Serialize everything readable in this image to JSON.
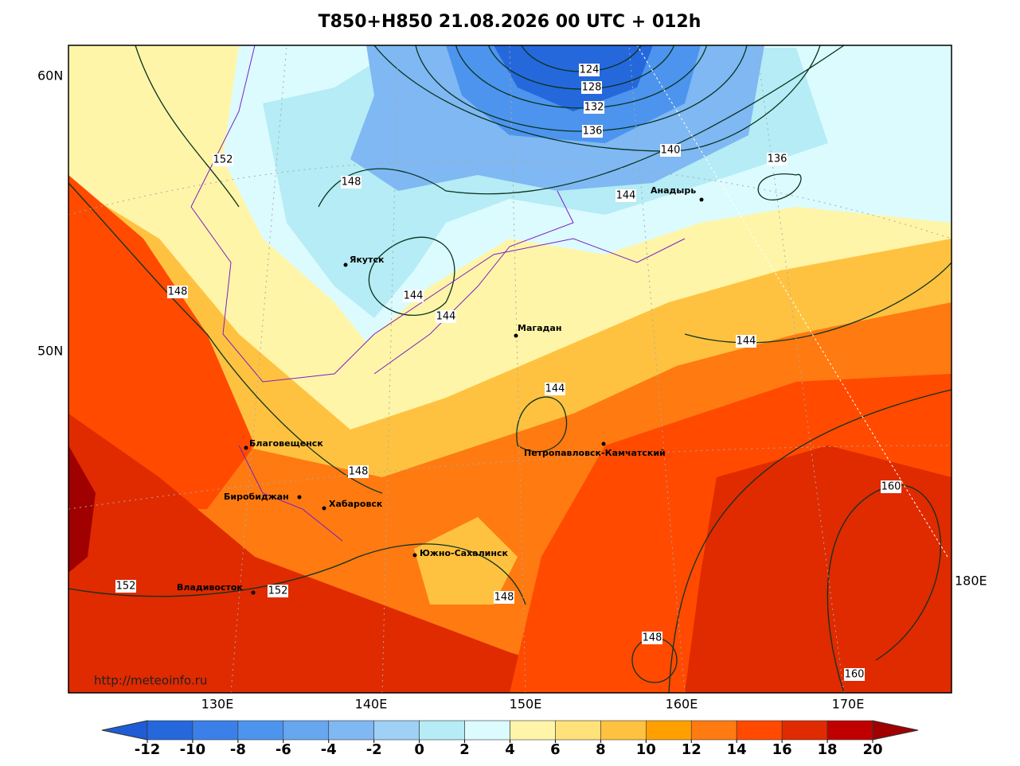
{
  "title": "T850+H850 21.08.2026 00 UTC + 012h",
  "lat_labels": [
    "60N",
    "50N"
  ],
  "lon_labels": [
    "130E",
    "140E",
    "150E",
    "160E",
    "170E",
    "180E"
  ],
  "cities": [
    "Якутск",
    "Магадан",
    "Анадырь",
    "Благовещенск",
    "Биробиджан",
    "Хабаровск",
    "Петропавловск-Камчатский",
    "Южно-Сахалинск",
    "Владивосток"
  ],
  "contour_labels": [
    124,
    128,
    132,
    136,
    140,
    136,
    144,
    152,
    148,
    148,
    144,
    144,
    144,
    144,
    148,
    152,
    152,
    148,
    160,
    160,
    148
  ],
  "url": "http://meteoinfo.ru",
  "colorbar": {
    "ticks": [
      -12,
      -10,
      -8,
      -6,
      -4,
      -2,
      0,
      2,
      4,
      6,
      8,
      10,
      12,
      14,
      16,
      18,
      20
    ],
    "colors": [
      "#1f5cd6",
      "#2468dc",
      "#3a80e8",
      "#4d94ee",
      "#66a7f0",
      "#7fb8f2",
      "#9fd0f5",
      "#b5ecf5",
      "#dcfbff",
      "#fff5a8",
      "#ffe27a",
      "#ffc240",
      "#ffa000",
      "#ff7a10",
      "#ff4a00",
      "#e02a00",
      "#c00000",
      "#a00000"
    ]
  }
}
